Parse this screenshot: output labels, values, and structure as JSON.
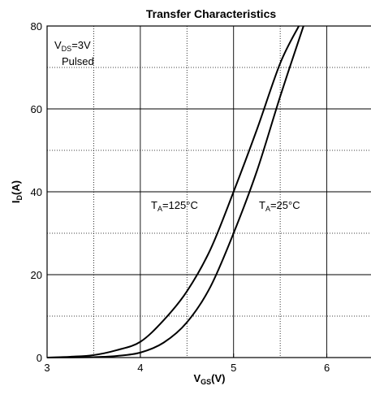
{
  "chart_data": {
    "type": "line",
    "title": "Transfer Characteristics",
    "xlabel": {
      "main": "V",
      "sub": "GS",
      "unit": "(V)"
    },
    "ylabel": {
      "main": "I",
      "sub": "D",
      "unit": "(A)"
    },
    "xlim": [
      3,
      6.5
    ],
    "ylim": [
      0,
      80
    ],
    "x_ticks": [
      3,
      4,
      5,
      6
    ],
    "y_ticks": [
      0,
      20,
      40,
      60,
      80
    ],
    "grid": "major solid, minor dotted",
    "annotations": {
      "condition_main": "V",
      "condition_sub": "DS",
      "condition_value": "=3V",
      "condition_line2": "Pulsed"
    },
    "series": [
      {
        "label_main": "T",
        "label_sub": "A",
        "label_value": "=125°C",
        "x": [
          3.0,
          3.25,
          3.5,
          3.75,
          4.0,
          4.25,
          4.5,
          4.75,
          5.0,
          5.25,
          5.5,
          5.7
        ],
        "y": [
          0,
          0.2,
          0.6,
          1.8,
          3.8,
          9.0,
          16.0,
          26.0,
          40.0,
          55.0,
          71.0,
          80.0
        ]
      },
      {
        "label_main": "T",
        "label_sub": "A",
        "label_value": "=25°C",
        "x": [
          3.0,
          3.5,
          3.75,
          4.0,
          4.25,
          4.5,
          4.75,
          5.0,
          5.25,
          5.5,
          5.75
        ],
        "y": [
          0,
          0.1,
          0.4,
          1.2,
          3.6,
          8.5,
          17.0,
          30.0,
          45.0,
          63.0,
          80.0
        ]
      }
    ]
  }
}
